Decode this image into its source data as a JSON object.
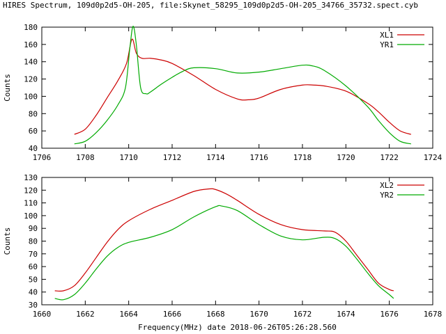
{
  "header": {
    "title": "HIRES Spectrum, 109d0p2d5-OH-205, file:Skynet_58295_109d0p2d5-OH-205_34766_35732.spect.cyb"
  },
  "colors": {
    "red": "#cc0000",
    "green": "#00aa00",
    "axis": "#000000"
  },
  "chart_data": [
    {
      "type": "line",
      "title": "",
      "xlabel": "",
      "ylabel": "Counts",
      "xlim": [
        1706,
        1724
      ],
      "ylim": [
        40,
        180
      ],
      "xticks": [
        1706,
        1708,
        1710,
        1712,
        1714,
        1716,
        1718,
        1720,
        1722,
        1724
      ],
      "yticks": [
        40,
        60,
        80,
        100,
        120,
        140,
        160,
        180
      ],
      "legend_position": "top-right",
      "series": [
        {
          "name": "XL1",
          "color": "#cc0000",
          "x": [
            1707.5,
            1708.0,
            1708.5,
            1709.0,
            1709.5,
            1709.9,
            1710.15,
            1710.35,
            1710.6,
            1711.0,
            1711.5,
            1712.0,
            1713.0,
            1714.0,
            1715.0,
            1715.5,
            1716.0,
            1717.0,
            1718.0,
            1718.5,
            1719.0,
            1720.0,
            1721.0,
            1721.5,
            1722.0,
            1722.5,
            1723.0
          ],
          "y": [
            56,
            62,
            78,
            98,
            118,
            138,
            166,
            150,
            144,
            144,
            142,
            138,
            124,
            108,
            97,
            96,
            98,
            108,
            113,
            113,
            112,
            106,
            92,
            82,
            70,
            60,
            56
          ]
        },
        {
          "name": "YR1",
          "color": "#00aa00",
          "x": [
            1707.5,
            1708.0,
            1708.5,
            1709.0,
            1709.5,
            1709.85,
            1710.05,
            1710.2,
            1710.35,
            1710.55,
            1710.8,
            1711.0,
            1711.5,
            1712.0,
            1712.5,
            1713.0,
            1714.0,
            1715.0,
            1716.0,
            1717.0,
            1718.0,
            1718.5,
            1719.0,
            1720.0,
            1721.0,
            1721.5,
            1722.0,
            1722.5,
            1723.0
          ],
          "y": [
            45,
            48,
            58,
            72,
            90,
            110,
            155,
            181,
            160,
            110,
            103,
            105,
            114,
            122,
            129,
            133,
            132,
            127,
            128,
            132,
            136,
            135,
            130,
            112,
            88,
            72,
            58,
            48,
            45
          ]
        }
      ]
    },
    {
      "type": "line",
      "title": "",
      "xlabel": "Frequency(MHz) date 2018-06-26T05:26:28.560",
      "ylabel": "Counts",
      "xlim": [
        1660,
        1678
      ],
      "ylim": [
        30,
        130
      ],
      "xticks": [
        1660,
        1662,
        1664,
        1666,
        1668,
        1670,
        1672,
        1674,
        1676,
        1678
      ],
      "yticks": [
        30,
        40,
        50,
        60,
        70,
        80,
        90,
        100,
        110,
        120,
        130
      ],
      "legend_position": "top-right",
      "series": [
        {
          "name": "XL2",
          "color": "#cc0000",
          "x": [
            1660.6,
            1661.0,
            1661.5,
            1662.0,
            1662.5,
            1663.0,
            1663.5,
            1664.0,
            1665.0,
            1666.0,
            1667.0,
            1667.7,
            1668.0,
            1668.5,
            1669.0,
            1670.0,
            1671.0,
            1672.0,
            1673.0,
            1673.5,
            1674.0,
            1674.5,
            1675.0,
            1675.5,
            1676.0,
            1676.2
          ],
          "y": [
            41,
            41,
            45,
            55,
            67,
            79,
            89,
            96,
            105,
            112,
            119,
            121,
            120.5,
            117,
            112,
            101,
            93,
            89,
            88,
            87,
            80,
            69,
            58,
            47,
            42,
            41
          ]
        },
        {
          "name": "YR2",
          "color": "#00aa00",
          "x": [
            1660.6,
            1661.0,
            1661.5,
            1662.0,
            1662.5,
            1663.0,
            1663.5,
            1664.0,
            1665.0,
            1666.0,
            1667.0,
            1668.0,
            1668.3,
            1669.0,
            1670.0,
            1671.0,
            1672.0,
            1673.0,
            1673.5,
            1674.0,
            1674.5,
            1675.0,
            1675.5,
            1676.0,
            1676.2
          ],
          "y": [
            35,
            34,
            38,
            47,
            58,
            68,
            75,
            79,
            83,
            89,
            99,
            107,
            107.5,
            104,
            93,
            84,
            81,
            83,
            82,
            76,
            66,
            55,
            45,
            38,
            35
          ]
        }
      ]
    }
  ]
}
